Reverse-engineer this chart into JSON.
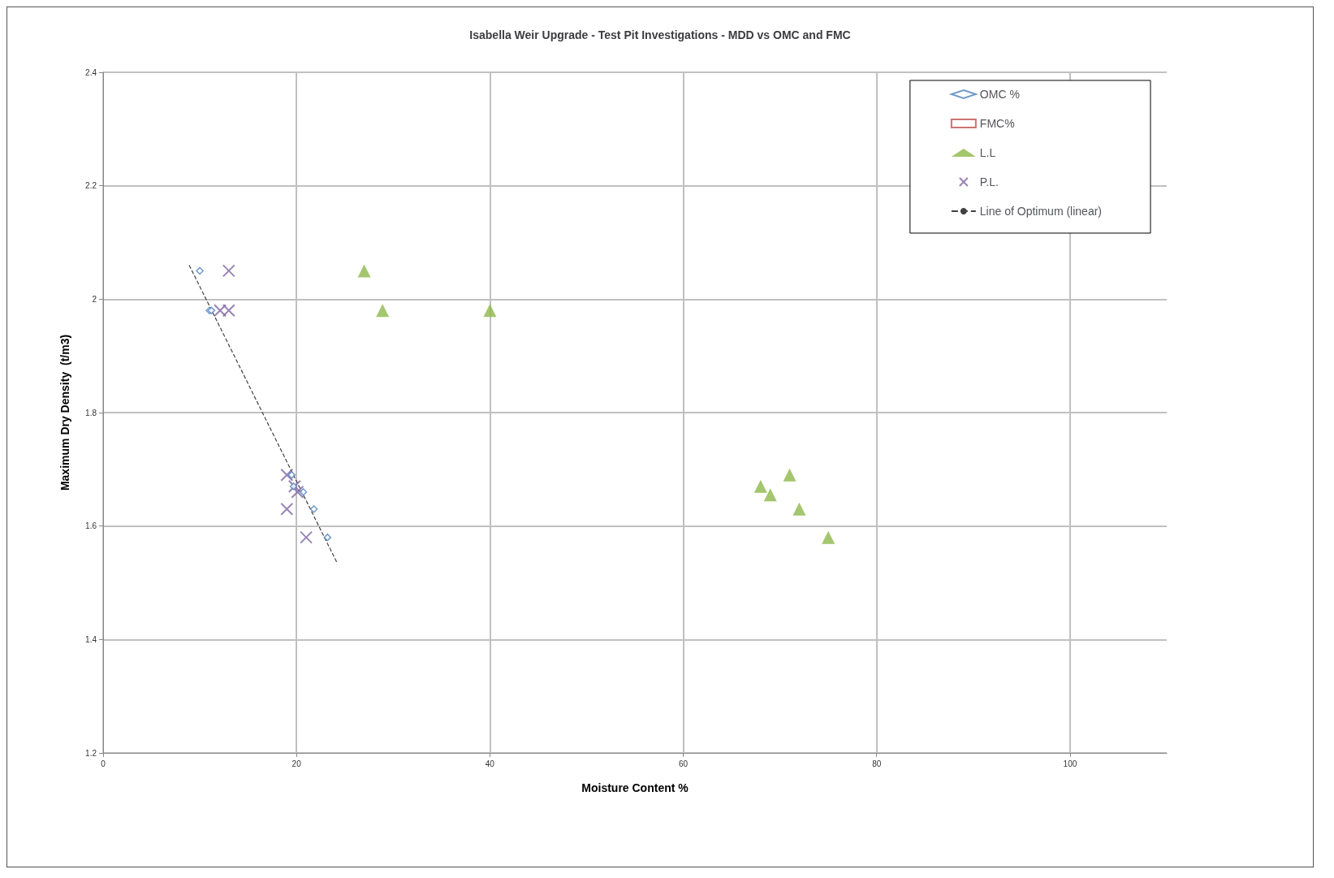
{
  "chart_data": {
    "type": "scatter",
    "title": "Isabella Weir Upgrade - Test Pit Investigations - MDD vs OMC and FMC",
    "xlabel": "Moisture Content %",
    "ylabel": "Maximum Dry Density  (t/m3)",
    "xlim": [
      0,
      110
    ],
    "xticks": [
      0,
      20,
      40,
      60,
      80,
      100
    ],
    "ylim": [
      1.2,
      2.4
    ],
    "yticks": [
      1.2,
      1.4,
      1.6,
      1.8,
      2,
      2.2,
      2.4
    ],
    "grid": true,
    "legend": "top right",
    "series": [
      {
        "name": "OMC %",
        "marker": "diamond",
        "color": "#4f81bd",
        "x": [
          10,
          11,
          11.2,
          19.5,
          19.7,
          20.7,
          21.8,
          23.2
        ],
        "values": [
          2.05,
          1.98,
          1.98,
          1.69,
          1.67,
          1.66,
          1.63,
          1.58
        ]
      },
      {
        "name": "FMC%",
        "marker": "square",
        "color": "#c0504d"
      },
      {
        "name": "L.L",
        "marker": "triangle",
        "color": "#8db84a",
        "x": [
          27,
          28.9,
          40,
          68,
          69,
          71,
          72,
          75
        ],
        "values": [
          2.05,
          1.98,
          1.98,
          1.67,
          1.655,
          1.69,
          1.63,
          1.58
        ]
      },
      {
        "name": "P.L.",
        "marker": "cross",
        "color": "#8064a2",
        "x": [
          13,
          12.1,
          13,
          19,
          19.8,
          20.1,
          19,
          21
        ],
        "values": [
          2.05,
          1.98,
          1.98,
          1.69,
          1.67,
          1.66,
          1.63,
          1.58
        ]
      },
      {
        "name": "Line of Optimum (linear)",
        "type": "line",
        "marker": "none",
        "line_style": "dashed",
        "color": "#404040",
        "x": [
          8.9,
          24.2
        ],
        "values": [
          2.06,
          1.535
        ]
      }
    ]
  }
}
